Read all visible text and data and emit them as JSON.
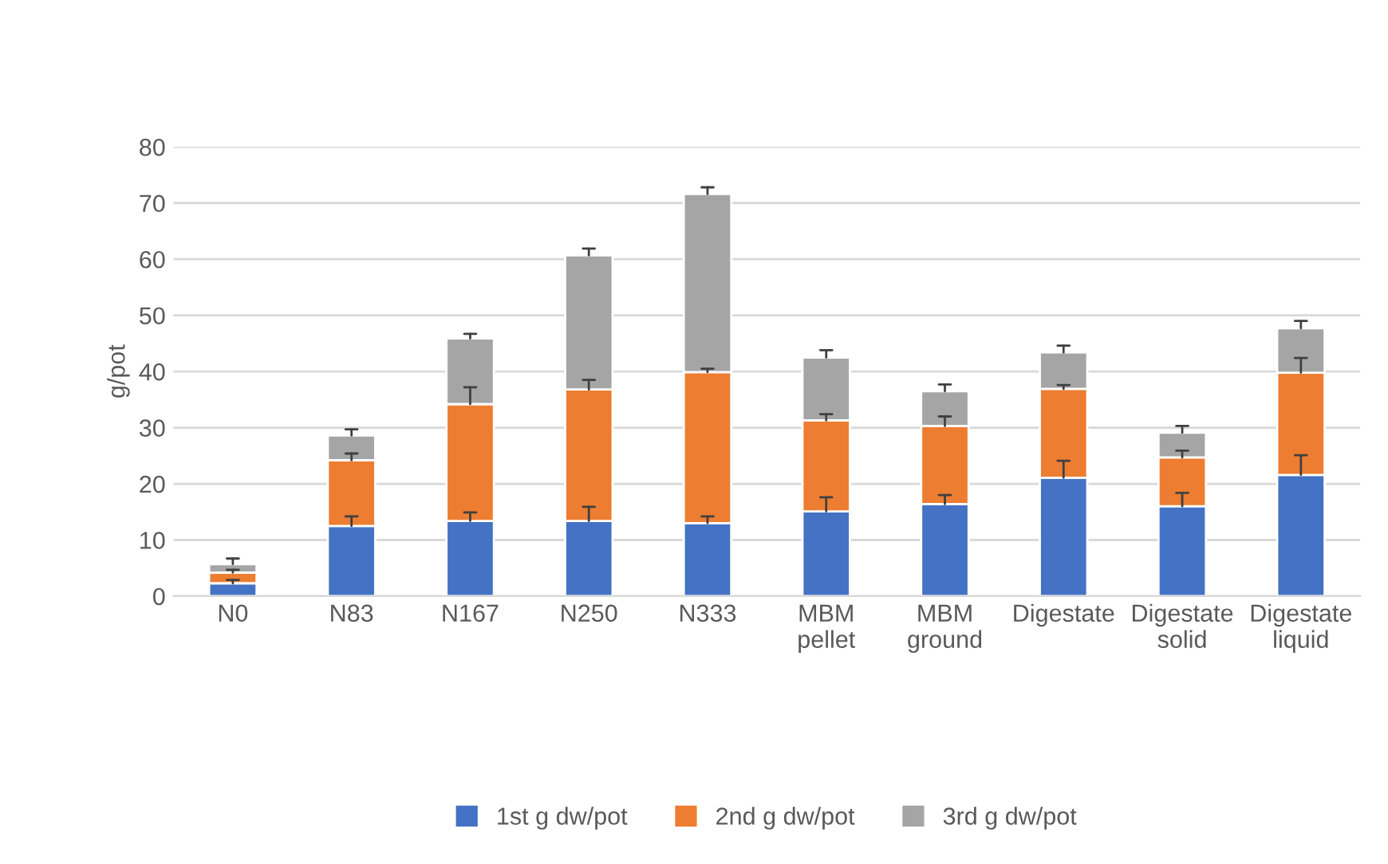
{
  "chart_data": {
    "type": "bar",
    "stacked": true,
    "ylabel": "g/pot",
    "categories": [
      "N0",
      "N83",
      "N167",
      "N250",
      "N333",
      "MBM pellet",
      "MBM ground",
      "Digestate",
      "Digestate solid",
      "Digestate liquid"
    ],
    "series": [
      {
        "name": "1st g dw/pot",
        "color": "#4472c4",
        "values": [
          2.3,
          12.5,
          13.4,
          13.4,
          13.0,
          15.1,
          16.4,
          21.1,
          16.0,
          21.6
        ],
        "errors": [
          [
            2.3,
            2.9
          ],
          [
            12.5,
            14.2
          ],
          [
            13.4,
            14.9
          ],
          [
            13.4,
            15.9
          ],
          [
            13.0,
            14.2
          ],
          [
            15.1,
            17.6
          ],
          [
            16.4,
            18.0
          ],
          [
            21.1,
            24.1
          ],
          [
            16.0,
            18.4
          ],
          [
            21.6,
            25.1
          ]
        ]
      },
      {
        "name": "2nd g dw/pot",
        "color": "#ed7d31",
        "values": [
          1.9,
          11.7,
          20.8,
          23.4,
          26.9,
          16.2,
          13.9,
          15.8,
          8.7,
          18.2
        ],
        "errors": [
          [
            4.2,
            4.7
          ],
          [
            24.2,
            25.4
          ],
          [
            34.2,
            37.2
          ],
          [
            36.8,
            38.5
          ],
          [
            39.9,
            40.5
          ],
          [
            31.3,
            32.4
          ],
          [
            30.3,
            32.0
          ],
          [
            36.9,
            37.6
          ],
          [
            24.7,
            25.9
          ],
          [
            39.8,
            42.4
          ]
        ]
      },
      {
        "name": "3rd g dw/pot",
        "color": "#a5a5a5",
        "values": [
          1.5,
          4.4,
          11.7,
          23.9,
          31.7,
          11.2,
          6.2,
          6.5,
          4.4,
          7.9
        ],
        "errors": [
          [
            5.7,
            6.7
          ],
          [
            28.6,
            29.7
          ],
          [
            45.9,
            46.7
          ],
          [
            60.7,
            61.9
          ],
          [
            71.6,
            72.8
          ],
          [
            42.5,
            43.8
          ],
          [
            36.5,
            37.7
          ],
          [
            43.4,
            44.6
          ],
          [
            29.1,
            30.3
          ],
          [
            47.7,
            49.0
          ]
        ]
      }
    ],
    "ylim": [
      0,
      80
    ],
    "yticks": [
      0,
      10,
      20,
      30,
      40,
      50,
      60,
      70,
      80
    ],
    "grid": "y",
    "legend": "bottom"
  }
}
